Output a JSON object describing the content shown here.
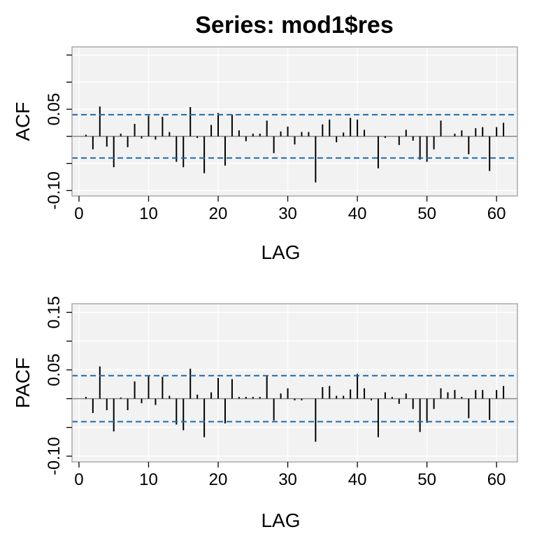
{
  "figure_title": "Series:  mod1$res",
  "colors": {
    "panel_bg": "#f2f2f2",
    "panel_border": "#aaaaaa",
    "grid": "#ffffff",
    "zero_line": "#888888",
    "bar": "#000000",
    "ci_line": "#1a6ab0"
  },
  "chart_data": [
    {
      "type": "bar",
      "ylabel": "ACF",
      "xlabel": "LAG",
      "xlim": [
        -1,
        63
      ],
      "ylim": [
        -0.11,
        0.165
      ],
      "x_ticks": [
        0,
        10,
        20,
        30,
        40,
        50,
        60
      ],
      "y_tick_labels": [
        -0.1,
        0.05
      ],
      "y_minor_ticks": [
        -0.1,
        -0.05,
        0.0,
        0.05,
        0.1,
        0.15
      ],
      "ci": [
        0.04,
        -0.04
      ],
      "grid": true,
      "x": [
        1,
        2,
        3,
        4,
        5,
        6,
        7,
        8,
        9,
        10,
        11,
        12,
        13,
        14,
        15,
        16,
        17,
        18,
        19,
        20,
        21,
        22,
        23,
        24,
        25,
        26,
        27,
        28,
        29,
        30,
        31,
        32,
        33,
        34,
        35,
        36,
        37,
        38,
        39,
        40,
        41,
        42,
        43,
        44,
        45,
        46,
        47,
        48,
        49,
        50,
        51,
        52,
        53,
        54,
        55,
        56,
        57,
        58,
        59,
        60,
        61
      ],
      "values": [
        0.003,
        -0.024,
        0.055,
        -0.019,
        -0.057,
        0.005,
        -0.02,
        0.023,
        -0.004,
        0.038,
        -0.006,
        0.036,
        0.008,
        -0.047,
        -0.057,
        0.054,
        -0.003,
        -0.068,
        0.021,
        0.043,
        -0.054,
        0.04,
        0.011,
        -0.009,
        0.005,
        0.005,
        0.029,
        -0.031,
        0.009,
        0.018,
        -0.015,
        0.008,
        0.008,
        -0.085,
        0.022,
        0.031,
        -0.011,
        0.007,
        0.034,
        0.031,
        0.012,
        0.0,
        -0.059,
        -0.003,
        0.0,
        -0.016,
        0.012,
        -0.008,
        -0.043,
        -0.047,
        -0.024,
        0.029,
        0.0,
        0.005,
        0.011,
        -0.033,
        0.015,
        0.017,
        -0.064,
        0.017,
        0.025
      ]
    },
    {
      "type": "bar",
      "ylabel": "PACF",
      "xlabel": "LAG",
      "xlim": [
        -1,
        63
      ],
      "ylim": [
        -0.11,
        0.165
      ],
      "x_ticks": [
        0,
        10,
        20,
        30,
        40,
        50,
        60
      ],
      "y_tick_labels": [
        -0.1,
        0.05,
        0.15
      ],
      "y_minor_ticks": [
        -0.1,
        -0.05,
        0.0,
        0.05,
        0.1,
        0.15
      ],
      "ci": [
        0.04,
        -0.04
      ],
      "grid": true,
      "x": [
        1,
        2,
        3,
        4,
        5,
        6,
        7,
        8,
        9,
        10,
        11,
        12,
        13,
        14,
        15,
        16,
        17,
        18,
        19,
        20,
        21,
        22,
        23,
        24,
        25,
        26,
        27,
        28,
        29,
        30,
        31,
        32,
        33,
        34,
        35,
        36,
        37,
        38,
        39,
        40,
        41,
        42,
        43,
        44,
        45,
        46,
        47,
        48,
        49,
        50,
        51,
        52,
        53,
        54,
        55,
        56,
        57,
        58,
        59,
        60,
        61
      ],
      "values": [
        0.003,
        -0.025,
        0.056,
        -0.02,
        -0.057,
        0.002,
        -0.02,
        0.03,
        -0.008,
        0.039,
        -0.011,
        0.038,
        0.005,
        -0.045,
        -0.055,
        0.052,
        0.007,
        -0.067,
        0.011,
        0.036,
        -0.043,
        0.034,
        0.003,
        0.003,
        0.003,
        0.003,
        0.04,
        -0.038,
        0.009,
        0.018,
        -0.003,
        -0.003,
        0.0,
        -0.075,
        0.02,
        0.022,
        0.005,
        0.005,
        0.016,
        0.043,
        0.018,
        -0.003,
        -0.067,
        0.011,
        0.003,
        -0.009,
        0.009,
        -0.018,
        -0.058,
        -0.042,
        -0.018,
        0.018,
        0.011,
        0.015,
        0.003,
        -0.034,
        0.015,
        0.015,
        -0.037,
        0.015,
        0.022
      ]
    }
  ]
}
